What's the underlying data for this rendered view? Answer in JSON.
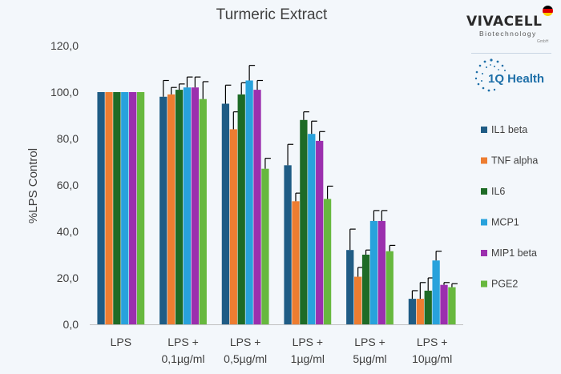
{
  "logos": {
    "vivacell": {
      "name": "VIVACELL",
      "subtitle": "Biotechnology",
      "suffix": "GmbH"
    },
    "iq": {
      "name": "1Q Health"
    }
  },
  "chart_data": {
    "type": "bar",
    "title": "Turmeric Extract",
    "xlabel": "",
    "ylabel": "%LPS Control",
    "ylim": [
      0,
      120
    ],
    "yticks": [
      "0,0",
      "20,0",
      "40,0",
      "60,0",
      "80,0",
      "100,0",
      "120,0"
    ],
    "grid": false,
    "legend_position": "right",
    "categories": [
      [
        "LPS"
      ],
      [
        "LPS +",
        "0,1µg/ml"
      ],
      [
        "LPS +",
        "0,5µg/ml"
      ],
      [
        "LPS +",
        "1µg/ml"
      ],
      [
        "LPS +",
        "5µg/ml"
      ],
      [
        "LPS +",
        "10µg/ml"
      ]
    ],
    "series": [
      {
        "name": "IL1 beta",
        "color": "#1f5c85",
        "values": [
          100,
          98,
          95,
          68.5,
          32,
          11
        ],
        "errors": [
          0,
          7,
          8,
          9,
          9,
          3.5
        ]
      },
      {
        "name": "TNF alpha",
        "color": "#ed7d31",
        "values": [
          100,
          99,
          84,
          53,
          20.5,
          11
        ],
        "errors": [
          0,
          3,
          7.5,
          3.5,
          4,
          7
        ]
      },
      {
        "name": "IL6",
        "color": "#1e6b26",
        "values": [
          100,
          101,
          99,
          88,
          30,
          14.5
        ],
        "errors": [
          0,
          2.5,
          5,
          3.5,
          2,
          5.5
        ]
      },
      {
        "name": "MCP1",
        "color": "#28a2dc",
        "values": [
          100,
          102,
          105,
          82,
          44.5,
          27.5
        ],
        "errors": [
          0,
          4.5,
          6.5,
          5.5,
          4.5,
          4
        ]
      },
      {
        "name": "MIP1 beta",
        "color": "#9b2fae",
        "values": [
          100,
          102,
          101,
          79,
          44.5,
          17
        ],
        "errors": [
          0,
          4.5,
          4,
          4,
          4.5,
          1
        ]
      },
      {
        "name": "PGE2",
        "color": "#67b83e",
        "values": [
          100,
          97,
          67,
          54,
          31.5,
          16
        ],
        "errors": [
          0,
          7.5,
          4.5,
          5.5,
          2.5,
          1.5
        ]
      }
    ]
  }
}
